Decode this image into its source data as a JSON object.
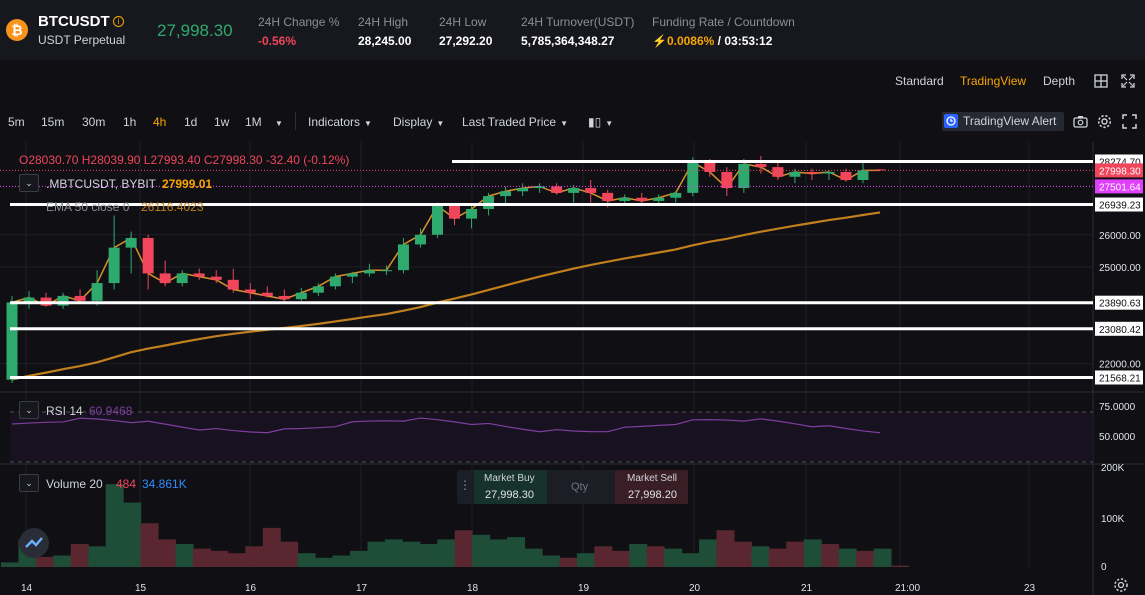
{
  "header": {
    "coin_icon_glyph": "₿",
    "symbol": "BTCUSDT",
    "info_icon_glyph": "i",
    "contract_type": "USDT Perpetual",
    "last_price": "27,998.30",
    "stats": [
      {
        "label": "24H Change %",
        "value": "-0.56%",
        "negative": true
      },
      {
        "label": "24H High",
        "value": "28,245.00"
      },
      {
        "label": "24H Low",
        "value": "27,292.20"
      },
      {
        "label": "24H Turnover(USDT)",
        "value": "5,785,364,348.27"
      }
    ],
    "funding": {
      "label": "Funding Rate / Countdown",
      "rate": "0.0086%",
      "separator": " / ",
      "countdown": "03:53:12"
    }
  },
  "views": {
    "standard": "Standard",
    "tradingview": "TradingView",
    "depth": "Depth"
  },
  "toolbar": {
    "intervals": [
      "5m",
      "15m",
      "30m",
      "1h",
      "4h",
      "1d",
      "1w",
      "1M"
    ],
    "active_interval": "4h",
    "indicators": "Indicators",
    "display": "Display",
    "price_source": "Last Traded Price",
    "tv_alert": "TradingView Alert"
  },
  "legend": {
    "ohlc": {
      "o": "O28030.70",
      "h": "H28039.90",
      "l": "L27993.40",
      "c": "C27998.30",
      "chg": "-32.40 (-0.12%)"
    },
    "compare_symbol": ".MBTCUSDT, BYBIT",
    "compare_value": "27999.01",
    "ema_label": "EMA 50 close 0",
    "ema_value": "26116.4023",
    "rsi_label": "RSI 14",
    "rsi_value": "60.9468",
    "vol_label": "Volume 20",
    "vol_value1": "484",
    "vol_value2": "34.861K"
  },
  "order_panel": {
    "buy_label": "Market Buy",
    "buy_price": "27,998.30",
    "qty_label": "Qty",
    "sell_label": "Market Sell",
    "sell_price": "27,998.20"
  },
  "colors": {
    "up": "#2eaa6e",
    "down": "#f0455b",
    "ema": "#c17f1e",
    "rsi": "#7e3f9e",
    "accent": "#f7a600"
  },
  "chart_data": {
    "type": "candlestick",
    "price_axis": [
      "28274.70",
      "27998.30",
      "27501.64",
      "26939.23",
      "26000.00",
      "25000.00",
      "23890.63",
      "23080.42",
      "22000.00",
      "21568.21"
    ],
    "rsi_axis": [
      "75.0000",
      "50.0000"
    ],
    "volume_axis": [
      "200K",
      "100K",
      "0"
    ],
    "time_axis": [
      "14",
      "15",
      "16",
      "17",
      "18",
      "19",
      "20",
      "21",
      "21:00",
      "23"
    ],
    "horizontal_lines": [
      28274.7,
      26939.23,
      23890.63,
      23080.42,
      21568.21
    ],
    "candles": [
      [
        21500,
        24100,
        21400,
        23900
      ],
      [
        23900,
        24250,
        23700,
        24050
      ],
      [
        24050,
        24200,
        23800,
        23800
      ],
      [
        23800,
        24200,
        23700,
        24100
      ],
      [
        24100,
        24300,
        23850,
        23950
      ],
      [
        23950,
        24900,
        23800,
        24500
      ],
      [
        24500,
        26600,
        24300,
        25600
      ],
      [
        25600,
        26100,
        24800,
        25900
      ],
      [
        25900,
        26000,
        24300,
        24800
      ],
      [
        24800,
        25200,
        24400,
        24500
      ],
      [
        24500,
        24900,
        24400,
        24800
      ],
      [
        24800,
        24950,
        24600,
        24700
      ],
      [
        24700,
        24900,
        24500,
        24600
      ],
      [
        24600,
        24950,
        24200,
        24300
      ],
      [
        24300,
        24500,
        24000,
        24200
      ],
      [
        24200,
        24400,
        24050,
        24100
      ],
      [
        24100,
        24300,
        23900,
        24000
      ],
      [
        24000,
        24350,
        23950,
        24200
      ],
      [
        24200,
        24500,
        24100,
        24400
      ],
      [
        24400,
        24800,
        24300,
        24700
      ],
      [
        24700,
        24850,
        24500,
        24800
      ],
      [
        24800,
        25100,
        24700,
        24900
      ],
      [
        24900,
        25050,
        24750,
        24900
      ],
      [
        24900,
        25900,
        24800,
        25700
      ],
      [
        25700,
        26200,
        25600,
        26000
      ],
      [
        26000,
        27000,
        25900,
        26900
      ],
      [
        26900,
        26950,
        26300,
        26500
      ],
      [
        26500,
        26900,
        26200,
        26800
      ],
      [
        26800,
        27300,
        26600,
        27200
      ],
      [
        27200,
        27500,
        26900,
        27350
      ],
      [
        27350,
        27600,
        27200,
        27450
      ],
      [
        27450,
        27600,
        27300,
        27500
      ],
      [
        27500,
        27600,
        27250,
        27300
      ],
      [
        27300,
        27550,
        27000,
        27450
      ],
      [
        27450,
        27700,
        27000,
        27300
      ],
      [
        27300,
        27400,
        26850,
        27050
      ],
      [
        27050,
        27250,
        26900,
        27150
      ],
      [
        27150,
        27300,
        26950,
        27050
      ],
      [
        27050,
        27250,
        26900,
        27150
      ],
      [
        27150,
        27350,
        27000,
        27300
      ],
      [
        27300,
        28400,
        27200,
        28250
      ],
      [
        28250,
        28350,
        27800,
        27950
      ],
      [
        27950,
        28100,
        27200,
        27450
      ],
      [
        27450,
        28350,
        27300,
        28200
      ],
      [
        28200,
        28450,
        27900,
        28100
      ],
      [
        28100,
        28250,
        27700,
        27800
      ],
      [
        27800,
        28050,
        27600,
        27950
      ],
      [
        27950,
        28050,
        27700,
        27900
      ],
      [
        27900,
        28000,
        27700,
        27950
      ],
      [
        27950,
        28050,
        27650,
        27700
      ],
      [
        27700,
        28250,
        27600,
        28000
      ],
      [
        28030,
        28040,
        27990,
        27998
      ]
    ],
    "volumes": [
      10,
      60,
      22,
      25,
      50,
      45,
      180,
      140,
      95,
      60,
      50,
      40,
      35,
      30,
      45,
      85,
      55,
      30,
      20,
      25,
      35,
      55,
      60,
      55,
      50,
      60,
      80,
      70,
      60,
      65,
      40,
      25,
      20,
      30,
      45,
      35,
      50,
      45,
      40,
      30,
      60,
      80,
      55,
      45,
      40,
      55,
      60,
      50,
      40,
      35,
      40,
      3
    ]
  }
}
